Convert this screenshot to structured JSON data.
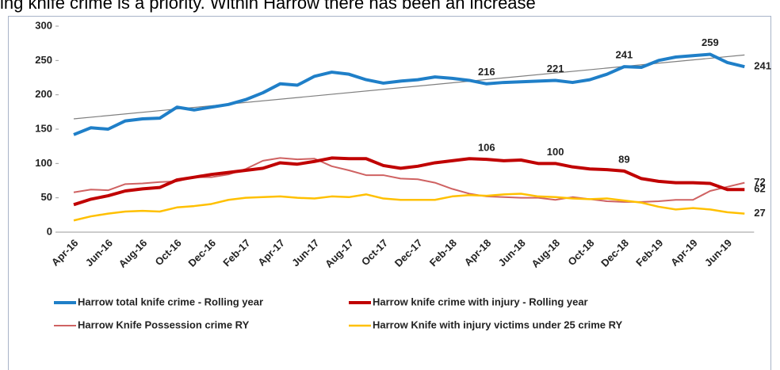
{
  "header": {
    "text": "ing knife crime is a priority. Within Harrow there has been an increase"
  },
  "chart_data": {
    "type": "line",
    "categories": [
      "Apr-16",
      null,
      "Jun-16",
      null,
      "Aug-16",
      null,
      "Oct-16",
      null,
      "Dec-16",
      null,
      "Feb-17",
      null,
      "Apr-17",
      null,
      "Jun-17",
      null,
      "Aug-17",
      null,
      "Oct-17",
      null,
      "Dec-17",
      null,
      "Feb-18",
      null,
      "Apr-18",
      null,
      "Jun-18",
      null,
      "Aug-18",
      null,
      "Oct-18",
      null,
      "Dec-18",
      null,
      "Feb-19",
      null,
      "Apr-19",
      null,
      "Jun-19",
      null
    ],
    "ylim": [
      0,
      300
    ],
    "yticks": [
      0,
      50,
      100,
      150,
      200,
      250,
      300
    ],
    "grid": false,
    "series": [
      {
        "name": "Harrow total knife crime - Rolling year",
        "color": "#1f7fc8",
        "width": 4,
        "values": [
          142,
          152,
          150,
          162,
          165,
          166,
          182,
          178,
          182,
          186,
          193,
          203,
          216,
          214,
          227,
          233,
          230,
          222,
          217,
          220,
          222,
          226,
          224,
          221,
          216,
          218,
          219,
          220,
          221,
          218,
          222,
          230,
          241,
          240,
          250,
          255,
          257,
          259,
          247,
          241
        ],
        "labeled_points": [
          24,
          28,
          32,
          37,
          39
        ]
      },
      {
        "name": "Harrow knife crime with injury - Rolling year",
        "color": "#c00000",
        "width": 4,
        "values": [
          40,
          48,
          53,
          60,
          63,
          65,
          76,
          80,
          84,
          87,
          90,
          93,
          101,
          99,
          103,
          108,
          107,
          107,
          97,
          93,
          96,
          101,
          104,
          107,
          106,
          104,
          105,
          100,
          100,
          95,
          92,
          91,
          89,
          78,
          74,
          72,
          72,
          71,
          62,
          62
        ],
        "labeled_points": [
          24,
          28,
          32,
          39
        ]
      },
      {
        "name": "Harrow Knife Possession crime RY",
        "color": "#cf6262",
        "width": 2,
        "values": [
          58,
          62,
          61,
          70,
          71,
          73,
          74,
          80,
          80,
          84,
          92,
          104,
          108,
          106,
          107,
          96,
          90,
          83,
          83,
          78,
          77,
          72,
          63,
          56,
          52,
          51,
          50,
          50,
          47,
          51,
          48,
          45,
          44,
          44,
          45,
          47,
          47,
          60,
          66,
          72
        ],
        "labeled_points": [
          39
        ]
      },
      {
        "name": "Harrow Knife with injury victims under 25 crime RY",
        "color": "#ffc000",
        "width": 2.5,
        "values": [
          17,
          23,
          27,
          30,
          31,
          30,
          36,
          38,
          41,
          47,
          50,
          51,
          52,
          50,
          49,
          52,
          51,
          55,
          49,
          47,
          47,
          47,
          52,
          54,
          53,
          55,
          56,
          52,
          51,
          49,
          48,
          49,
          46,
          43,
          37,
          33,
          35,
          33,
          29,
          27
        ],
        "labeled_points": [
          39
        ]
      }
    ],
    "trendline": {
      "start": 165,
      "end": 258,
      "color": "#7f7f7f"
    }
  }
}
